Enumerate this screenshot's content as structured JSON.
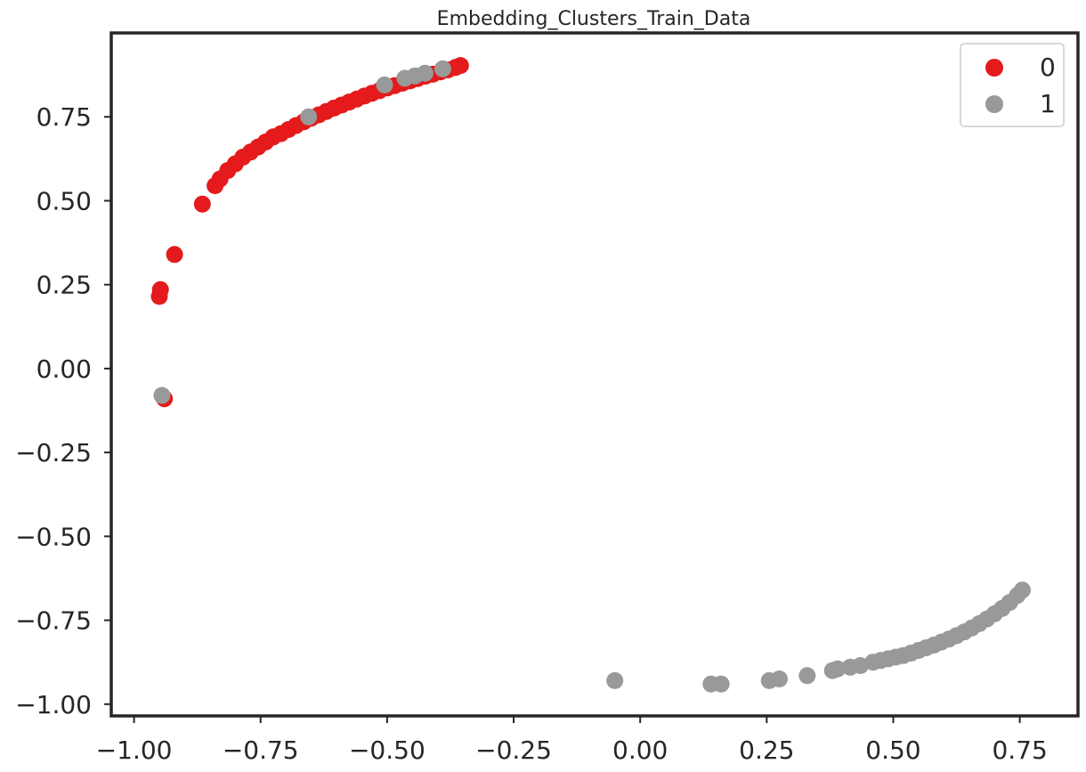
{
  "chart_data": {
    "type": "scatter",
    "title": "Embedding_Clusters_Train_Data",
    "xlabel": "",
    "ylabel": "",
    "xlim": [
      -1.045,
      0.865
    ],
    "ylim": [
      -1.035,
      1.0
    ],
    "xticks": [
      {
        "value": -1.0,
        "label": "−1.00"
      },
      {
        "value": -0.75,
        "label": "−0.75"
      },
      {
        "value": -0.5,
        "label": "−0.50"
      },
      {
        "value": -0.25,
        "label": "−0.25"
      },
      {
        "value": 0.0,
        "label": "0.00"
      },
      {
        "value": 0.25,
        "label": "0.25"
      },
      {
        "value": 0.5,
        "label": "0.50"
      },
      {
        "value": 0.75,
        "label": "0.75"
      }
    ],
    "yticks": [
      {
        "value": -1.0,
        "label": "−1.00"
      },
      {
        "value": -0.75,
        "label": "−0.75"
      },
      {
        "value": -0.5,
        "label": "−0.50"
      },
      {
        "value": -0.25,
        "label": "−0.25"
      },
      {
        "value": 0.0,
        "label": "0.00"
      },
      {
        "value": 0.25,
        "label": "0.25"
      },
      {
        "value": 0.5,
        "label": "0.50"
      },
      {
        "value": 0.75,
        "label": "0.75"
      }
    ],
    "grid": false,
    "legend_position": "top-right",
    "series": [
      {
        "name": "0",
        "color": "#e41a1c",
        "points": [
          [
            -0.94,
            -0.09
          ],
          [
            -0.95,
            0.215
          ],
          [
            -0.948,
            0.235
          ],
          [
            -0.92,
            0.34
          ],
          [
            -0.865,
            0.49
          ],
          [
            -0.84,
            0.545
          ],
          [
            -0.83,
            0.565
          ],
          [
            -0.815,
            0.59
          ],
          [
            -0.8,
            0.61
          ],
          [
            -0.785,
            0.63
          ],
          [
            -0.77,
            0.645
          ],
          [
            -0.755,
            0.66
          ],
          [
            -0.74,
            0.675
          ],
          [
            -0.725,
            0.69
          ],
          [
            -0.71,
            0.7
          ],
          [
            -0.695,
            0.712
          ],
          [
            -0.68,
            0.724
          ],
          [
            -0.665,
            0.735
          ],
          [
            -0.65,
            0.746
          ],
          [
            -0.635,
            0.756
          ],
          [
            -0.62,
            0.766
          ],
          [
            -0.605,
            0.776
          ],
          [
            -0.59,
            0.785
          ],
          [
            -0.575,
            0.794
          ],
          [
            -0.56,
            0.803
          ],
          [
            -0.545,
            0.812
          ],
          [
            -0.53,
            0.82
          ],
          [
            -0.515,
            0.828
          ],
          [
            -0.5,
            0.836
          ],
          [
            -0.485,
            0.843
          ],
          [
            -0.47,
            0.85
          ],
          [
            -0.455,
            0.857
          ],
          [
            -0.44,
            0.864
          ],
          [
            -0.425,
            0.871
          ],
          [
            -0.41,
            0.877
          ],
          [
            -0.395,
            0.884
          ],
          [
            -0.38,
            0.89
          ],
          [
            -0.365,
            0.897
          ],
          [
            -0.355,
            0.903
          ]
        ]
      },
      {
        "name": "1",
        "color": "#999999",
        "points": [
          [
            -0.945,
            -0.08
          ],
          [
            -0.655,
            0.75
          ],
          [
            -0.505,
            0.845
          ],
          [
            -0.465,
            0.865
          ],
          [
            -0.445,
            0.872
          ],
          [
            -0.425,
            0.88
          ],
          [
            -0.39,
            0.893
          ],
          [
            -0.05,
            -0.93
          ],
          [
            0.14,
            -0.94
          ],
          [
            0.16,
            -0.94
          ],
          [
            0.255,
            -0.93
          ],
          [
            0.275,
            -0.925
          ],
          [
            0.33,
            -0.915
          ],
          [
            0.38,
            -0.9
          ],
          [
            0.39,
            -0.895
          ],
          [
            0.415,
            -0.89
          ],
          [
            0.435,
            -0.885
          ],
          [
            0.46,
            -0.875
          ],
          [
            0.475,
            -0.87
          ],
          [
            0.49,
            -0.865
          ],
          [
            0.505,
            -0.86
          ],
          [
            0.52,
            -0.855
          ],
          [
            0.535,
            -0.848
          ],
          [
            0.55,
            -0.84
          ],
          [
            0.565,
            -0.832
          ],
          [
            0.58,
            -0.824
          ],
          [
            0.595,
            -0.815
          ],
          [
            0.61,
            -0.806
          ],
          [
            0.625,
            -0.796
          ],
          [
            0.64,
            -0.785
          ],
          [
            0.655,
            -0.773
          ],
          [
            0.67,
            -0.76
          ],
          [
            0.685,
            -0.746
          ],
          [
            0.7,
            -0.731
          ],
          [
            0.715,
            -0.715
          ],
          [
            0.73,
            -0.697
          ],
          [
            0.745,
            -0.676
          ],
          [
            0.755,
            -0.66
          ]
        ]
      }
    ]
  }
}
